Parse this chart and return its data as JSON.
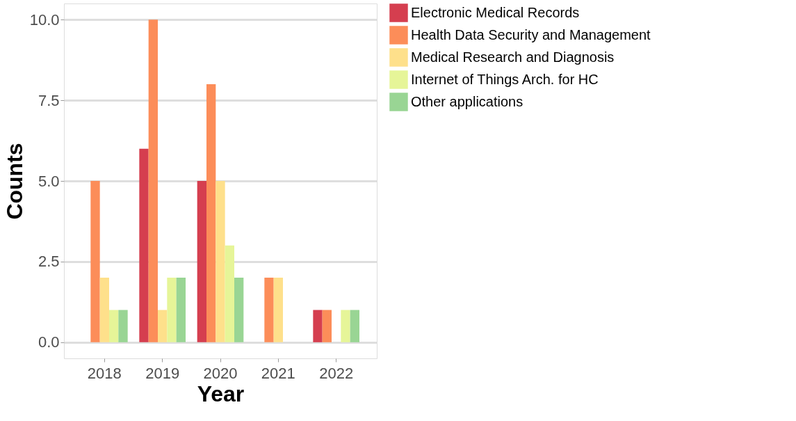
{
  "chart_data": {
    "type": "bar",
    "xlabel": "Year",
    "ylabel": "Counts",
    "categories": [
      "2018",
      "2019",
      "2020",
      "2021",
      "2022"
    ],
    "series": [
      {
        "name": "Electronic Medical Records",
        "color": "#d53e4f",
        "values": [
          null,
          6,
          5,
          null,
          1
        ]
      },
      {
        "name": "Health Data Security and Management",
        "color": "#fc8d59",
        "values": [
          5,
          10,
          8,
          2,
          1
        ]
      },
      {
        "name": "Medical Research and Diagnosis",
        "color": "#fee08b",
        "values": [
          2,
          1,
          5,
          2,
          null
        ]
      },
      {
        "name": "Internet of Things Arch. for HC",
        "color": "#e6f598",
        "values": [
          1,
          2,
          3,
          null,
          1
        ]
      },
      {
        "name": "Other applications",
        "color": "#99d594",
        "values": [
          1,
          2,
          2,
          null,
          1
        ]
      }
    ],
    "ylim": [
      -0.5,
      10.5
    ],
    "yticks": [
      {
        "value": 0,
        "label": "0.0"
      },
      {
        "value": 2.5,
        "label": "2.5"
      },
      {
        "value": 5,
        "label": "5.0"
      },
      {
        "value": 7.5,
        "label": "7.5"
      },
      {
        "value": 10,
        "label": "10.0"
      }
    ],
    "grid": "y",
    "legend": "right"
  }
}
